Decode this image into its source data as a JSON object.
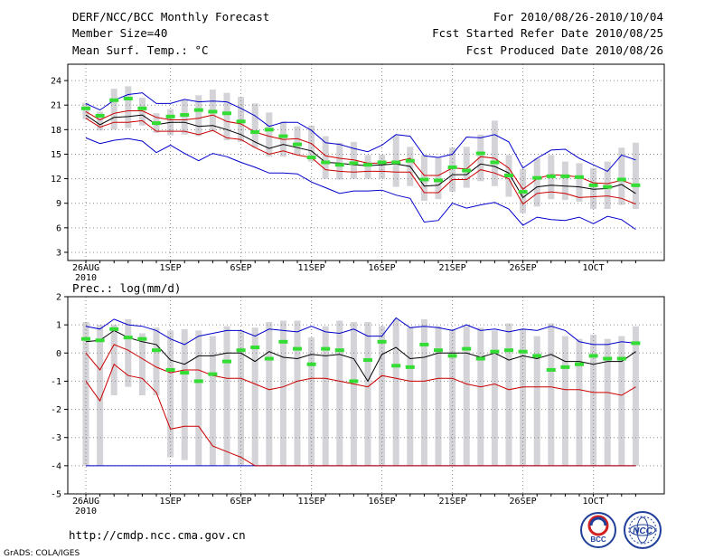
{
  "header": {
    "title": "DERF/NCC/BCC Monthly Forecast",
    "member_size": "Member Size=40",
    "variable": "Mean Surf. Temp.: °C",
    "period": "For 2010/08/26-2010/10/04",
    "fcst_started": "Fcst Started Refer Date 2010/08/25",
    "fcst_produced": "Fcst Produced Date 2010/08/26"
  },
  "footer": {
    "url": "http://cmdp.ncc.cma.gov.cn",
    "credit": "GrADS: COLA/IGES",
    "logo_left_text": "BCC",
    "logo_right_text": "NCC"
  },
  "colors": {
    "box": "#d3d3d8",
    "ensemble_mean": "#33dd33",
    "median": "#000000",
    "quartiles": "#cc0000",
    "extremes": "#0000cc",
    "grid": "#8a8a8a"
  },
  "chart_data": [
    {
      "type": "box-timeseries",
      "title": "Mean Surf. Temp.: °C",
      "ylim": [
        2,
        26
      ],
      "yticks": [
        3,
        6,
        9,
        12,
        15,
        18,
        21,
        24
      ],
      "xlabels": [
        {
          "day": 0,
          "text": "26AUG",
          "sub": "2010"
        },
        {
          "day": 6,
          "text": "1SEP"
        },
        {
          "day": 11,
          "text": "6SEP"
        },
        {
          "day": 16,
          "text": "11SEP"
        },
        {
          "day": 21,
          "text": "16SEP"
        },
        {
          "day": 26,
          "text": "21SEP"
        },
        {
          "day": 31,
          "text": "26SEP"
        },
        {
          "day": 36,
          "text": "1OCT"
        }
      ],
      "series": [
        {
          "name": "max",
          "role": "extremes",
          "values": [
            21.2,
            20.4,
            21.6,
            22.3,
            22.5,
            21.2,
            21.2,
            21.7,
            21.4,
            21.5,
            21.4,
            20.6,
            19.7,
            18.4,
            18.9,
            18.9,
            17.9,
            16.4,
            16.2,
            15.7,
            15.3,
            16.1,
            17.4,
            17.2,
            14.8,
            14.6,
            15.0,
            17.1,
            17.0,
            17.4,
            16.5,
            13.3,
            14.5,
            15.5,
            15.6,
            14.5,
            13.7,
            12.9,
            14.9,
            14.3
          ]
        },
        {
          "name": "q3",
          "role": "quartiles",
          "values": [
            20.2,
            19.2,
            20.0,
            20.3,
            20.3,
            19.5,
            19.2,
            19.2,
            19.4,
            19.8,
            19.0,
            18.7,
            17.7,
            17.2,
            16.8,
            16.9,
            16.3,
            14.8,
            14.5,
            14.3,
            13.9,
            13.9,
            14.1,
            14.5,
            12.4,
            12.4,
            13.3,
            13.2,
            14.7,
            14.5,
            13.3,
            10.7,
            12.0,
            12.5,
            12.4,
            12.2,
            11.5,
            11.4,
            11.8,
            11.2
          ]
        },
        {
          "name": "median",
          "role": "median",
          "values": [
            19.8,
            18.6,
            19.5,
            19.6,
            19.8,
            18.6,
            18.9,
            18.9,
            18.4,
            18.5,
            18.0,
            17.4,
            16.5,
            15.7,
            16.2,
            15.8,
            15.4,
            14.0,
            13.9,
            13.7,
            13.6,
            13.7,
            13.8,
            13.5,
            11.1,
            11.2,
            12.5,
            12.5,
            13.8,
            13.5,
            12.7,
            9.7,
            11.0,
            11.2,
            11.1,
            11.0,
            10.7,
            10.8,
            11.3,
            10.2
          ]
        },
        {
          "name": "q1",
          "role": "quartiles",
          "values": [
            19.4,
            18.3,
            18.9,
            18.9,
            19.1,
            17.8,
            17.8,
            17.8,
            17.4,
            17.9,
            17.0,
            16.8,
            15.8,
            15.0,
            15.4,
            14.9,
            14.6,
            13.1,
            12.9,
            12.8,
            12.9,
            12.9,
            12.8,
            12.8,
            10.3,
            10.3,
            11.9,
            11.9,
            13.1,
            12.7,
            12.0,
            8.9,
            10.2,
            10.4,
            10.2,
            9.7,
            9.8,
            9.9,
            9.6,
            8.9
          ]
        },
        {
          "name": "min",
          "role": "extremes",
          "values": [
            17.0,
            16.3,
            16.7,
            16.9,
            16.6,
            15.2,
            16.1,
            15.1,
            14.2,
            15.1,
            14.7,
            14.0,
            13.4,
            12.7,
            12.7,
            12.6,
            11.6,
            10.9,
            10.2,
            10.5,
            10.5,
            10.6,
            10.0,
            9.6,
            6.7,
            6.9,
            9.0,
            8.4,
            8.8,
            9.1,
            8.3,
            6.3,
            7.3,
            7.0,
            6.9,
            7.3,
            6.5,
            7.4,
            7.0,
            5.8
          ]
        },
        {
          "name": "ensemble_mean",
          "role": "ensemble_mean",
          "values": [
            20.6,
            19.7,
            21.6,
            21.8,
            20.6,
            18.8,
            19.6,
            19.8,
            20.4,
            20.2,
            20.0,
            19.0,
            17.7,
            18.0,
            17.2,
            16.2,
            14.6,
            14.0,
            13.7,
            13.9,
            13.7,
            14.0,
            14.0,
            14.2,
            11.9,
            11.8,
            13.4,
            13.0,
            15.1,
            14.0,
            12.4,
            10.4,
            12.1,
            12.3,
            12.3,
            12.2,
            11.2,
            11.0,
            11.9,
            11.2
          ]
        },
        {
          "name": "box_top",
          "role": "box",
          "values": [
            21.3,
            20.2,
            23.0,
            23.3,
            21.9,
            20.0,
            20.5,
            21.6,
            22.2,
            22.9,
            22.5,
            22.0,
            21.2,
            20.1,
            19.0,
            18.4,
            18.5,
            17.2,
            16.4,
            16.5,
            14.9,
            14.9,
            17.3,
            15.9,
            14.9,
            14.6,
            15.8,
            15.9,
            17.4,
            19.1,
            14.9,
            13.2,
            14.5,
            14.9,
            14.1,
            13.9,
            13.3,
            14.1,
            15.8,
            16.4
          ]
        },
        {
          "name": "box_bottom",
          "role": "box",
          "values": [
            19.3,
            17.9,
            18.0,
            18.2,
            18.5,
            17.6,
            17.3,
            17.4,
            17.2,
            17.8,
            16.7,
            16.5,
            15.8,
            14.7,
            14.7,
            14.9,
            14.1,
            12.0,
            11.9,
            12.0,
            12.0,
            12.0,
            11.0,
            11.1,
            9.3,
            9.5,
            10.4,
            10.9,
            11.7,
            11.1,
            9.8,
            7.8,
            8.6,
            9.5,
            9.4,
            9.2,
            8.3,
            8.3,
            8.8,
            8.3
          ]
        }
      ]
    },
    {
      "type": "box-timeseries",
      "title": "Prec.: log(mm/d)",
      "ylim": [
        -5,
        2
      ],
      "yticks": [
        -5,
        -4,
        -3,
        -2,
        -1,
        0,
        1,
        2
      ],
      "xlabels": [
        {
          "day": 0,
          "text": "26AUG",
          "sub": "2010"
        },
        {
          "day": 6,
          "text": "1SEP"
        },
        {
          "day": 11,
          "text": "6SEP"
        },
        {
          "day": 16,
          "text": "11SEP"
        },
        {
          "day": 21,
          "text": "16SEP"
        },
        {
          "day": 26,
          "text": "21SEP"
        },
        {
          "day": 31,
          "text": "26SEP"
        },
        {
          "day": 36,
          "text": "1OCT"
        }
      ],
      "series": [
        {
          "name": "max",
          "role": "extremes",
          "values": [
            0.95,
            0.85,
            1.2,
            1.0,
            0.95,
            0.8,
            0.5,
            0.3,
            0.6,
            0.7,
            0.8,
            0.8,
            0.6,
            0.85,
            0.8,
            0.75,
            0.95,
            0.75,
            0.7,
            0.85,
            0.6,
            0.6,
            1.25,
            0.9,
            0.95,
            0.9,
            0.8,
            1.0,
            0.8,
            0.85,
            0.75,
            0.85,
            0.8,
            0.95,
            0.8,
            0.4,
            0.3,
            0.3,
            0.4,
            0.35
          ]
        },
        {
          "name": "q3",
          "role": "quartiles",
          "values": [
            0.0,
            -0.6,
            0.3,
            0.1,
            -0.2,
            -0.5,
            -0.7,
            -0.6,
            -0.6,
            -0.8,
            -0.9,
            -0.9,
            -1.1,
            -1.3,
            -1.2,
            -1.0,
            -0.9,
            -0.9,
            -1.0,
            -1.1,
            -1.2,
            -0.8,
            -0.9,
            -1.0,
            -1.0,
            -0.9,
            -0.9,
            -1.1,
            -1.2,
            -1.1,
            -1.3,
            -1.2,
            -1.2,
            -1.2,
            -1.3,
            -1.3,
            -1.4,
            -1.4,
            -1.5,
            -1.2
          ]
        },
        {
          "name": "median",
          "role": "median",
          "values": [
            0.4,
            0.45,
            0.8,
            0.55,
            0.4,
            0.3,
            -0.25,
            -0.4,
            -0.1,
            -0.1,
            0.0,
            0.0,
            -0.3,
            0.05,
            -0.15,
            -0.2,
            -0.05,
            -0.1,
            -0.05,
            -0.2,
            -1.0,
            -0.05,
            0.2,
            -0.2,
            -0.15,
            0.0,
            0.0,
            0.0,
            -0.15,
            0.0,
            -0.25,
            -0.1,
            -0.2,
            -0.05,
            -0.3,
            -0.3,
            -0.4,
            -0.3,
            -0.3,
            0.05
          ]
        },
        {
          "name": "q1",
          "role": "quartiles",
          "values": [
            -1.0,
            -1.7,
            -0.4,
            -0.8,
            -0.9,
            -1.4,
            -2.7,
            -2.6,
            -2.6,
            -3.3,
            -3.5,
            -3.7,
            -4.0,
            -4.0,
            -4.0,
            -4.0,
            -4.0,
            -4.0,
            -4.0,
            -4.0,
            -4.0,
            -4.0,
            -4.0,
            -4.0,
            -4.0,
            -4.0,
            -4.0,
            -4.0,
            -4.0,
            -4.0,
            -4.0,
            -4.0,
            -4.0,
            -4.0,
            -4.0,
            -4.0,
            -4.0,
            -4.0,
            -4.0,
            -4.0
          ]
        },
        {
          "name": "min",
          "role": "extremes",
          "values": [
            -4.0,
            -4.0,
            -4.0,
            -4.0,
            -4.0,
            -4.0,
            -4.0,
            -4.0,
            -4.0,
            -4.0,
            -4.0,
            -4.0,
            -4.0,
            -4.0,
            -4.0,
            -4.0,
            -4.0,
            -4.0,
            -4.0,
            -4.0,
            -4.0,
            -4.0,
            -4.0,
            -4.0,
            -4.0,
            -4.0,
            -4.0,
            -4.0,
            -4.0,
            -4.0,
            -4.0,
            -4.0,
            -4.0,
            -4.0,
            -4.0,
            -4.0,
            -4.0,
            -4.0,
            -4.0,
            -4.0
          ]
        },
        {
          "name": "ensemble_mean",
          "role": "ensemble_mean",
          "values": [
            0.5,
            0.45,
            0.85,
            0.55,
            0.5,
            0.1,
            -0.6,
            -0.7,
            -1.0,
            -0.75,
            -0.3,
            0.1,
            0.2,
            -0.2,
            0.4,
            0.15,
            -0.4,
            0.15,
            0.1,
            -1.0,
            -0.25,
            0.4,
            -0.45,
            -0.5,
            0.3,
            0.1,
            -0.1,
            0.15,
            -0.2,
            0.05,
            0.1,
            0.05,
            -0.1,
            -0.6,
            -0.5,
            -0.4,
            -0.1,
            -0.2,
            -0.2,
            0.35
          ]
        },
        {
          "name": "box_top",
          "role": "box",
          "values": [
            1.1,
            1.0,
            1.0,
            1.2,
            0.7,
            0.9,
            0.8,
            0.85,
            0.8,
            0.6,
            0.95,
            0.8,
            0.9,
            1.1,
            1.15,
            1.15,
            0.55,
            0.95,
            1.15,
            1.1,
            1.1,
            0.95,
            1.2,
            0.9,
            1.2,
            0.95,
            0.85,
            0.95,
            0.9,
            0.8,
            1.05,
            0.85,
            0.6,
            1.05,
            0.6,
            0.5,
            0.65,
            0.5,
            0.6,
            0.95
          ]
        },
        {
          "name": "box_bottom",
          "role": "box",
          "values": [
            -4.0,
            -4.0,
            -1.5,
            -1.2,
            -1.5,
            -1.5,
            -3.7,
            -3.8,
            -4.0,
            -4.0,
            -4.0,
            -4.0,
            -4.0,
            -4.0,
            -4.0,
            -4.0,
            -4.0,
            -4.0,
            -4.0,
            -4.0,
            -4.0,
            -4.0,
            -4.0,
            -4.0,
            -4.0,
            -4.0,
            -4.0,
            -4.0,
            -4.0,
            -4.0,
            -4.0,
            -4.0,
            -4.0,
            -4.0,
            -4.0,
            -4.0,
            -4.0,
            -4.0,
            -4.0,
            -4.0
          ]
        }
      ]
    }
  ]
}
